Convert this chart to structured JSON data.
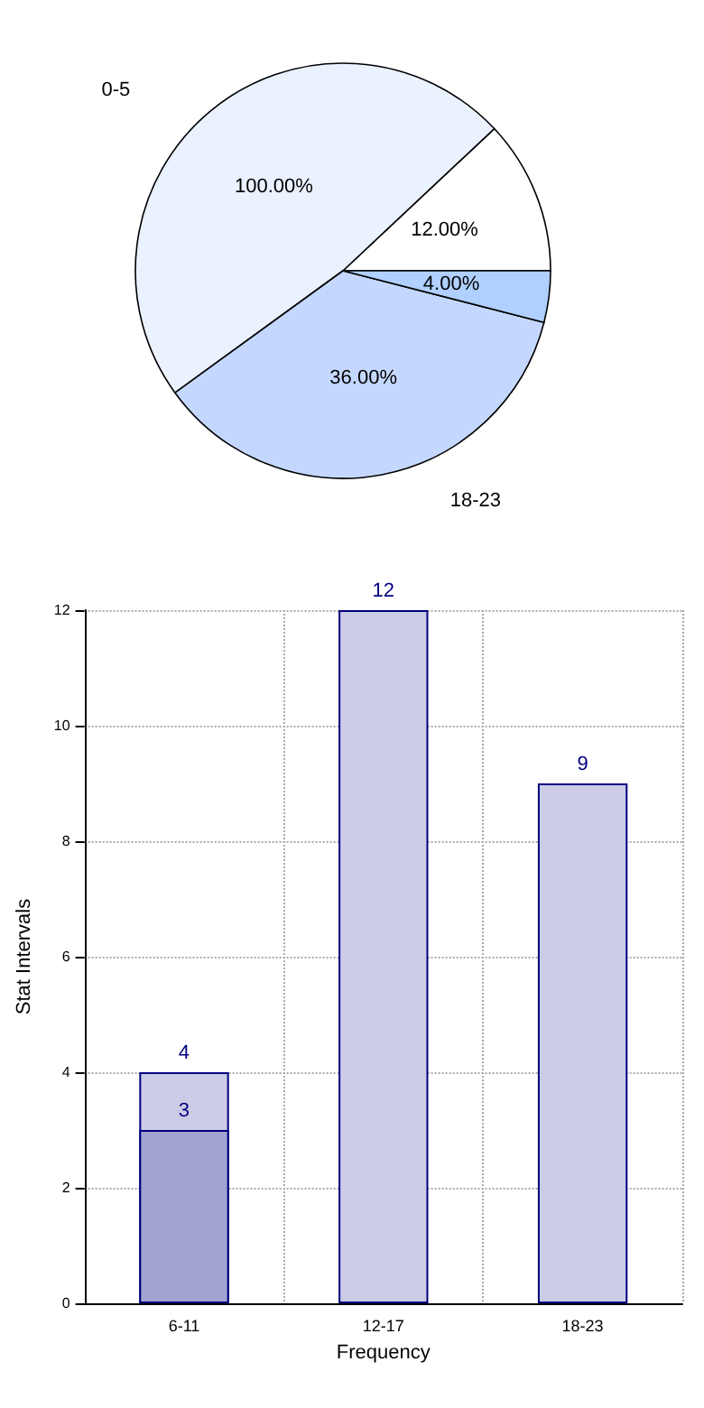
{
  "chart_data": [
    {
      "type": "pie",
      "categories": [
        null,
        "0-5",
        "18-23",
        null
      ],
      "values": [
        12,
        48,
        36,
        4
      ],
      "colors": [
        "#ffffff",
        "#eaf1ff",
        "#c4d8ff",
        "#b0d0ff"
      ],
      "value_labels": [
        "12.00%",
        null,
        "36.00%",
        "4.00%"
      ],
      "annotations": [
        "100.00%"
      ],
      "legend": false
    },
    {
      "type": "bar",
      "categories": [
        "6-11",
        "12-17",
        "18-23"
      ],
      "xlabel": "Frequency",
      "ylabel": "Stat Intervals",
      "series": [
        {
          "color": "#ccccE6",
          "values": [
            4,
            12,
            9
          ]
        },
        {
          "color": "#a3a3d1",
          "values": [
            3,
            null,
            null
          ]
        }
      ],
      "ylim": [
        0,
        12
      ],
      "yticks": [
        0,
        2,
        4,
        6,
        8,
        10,
        12
      ],
      "grid": true,
      "data_labels": true,
      "legend": false
    }
  ]
}
